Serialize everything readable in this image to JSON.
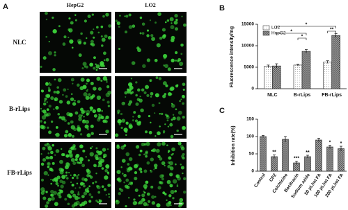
{
  "panel_a": {
    "label": "A",
    "columns": [
      "HepG2",
      "LO2"
    ],
    "rows": [
      "NLC",
      "B-rLips",
      "FB-rLips"
    ]
  },
  "chart_data": [
    {
      "type": "bar",
      "panel_label": "B",
      "y_label": "Fluorescence intensity/mg",
      "categories": [
        "NLC",
        "B-rLips",
        "FB-rLips"
      ],
      "series": [
        {
          "name": "LO2",
          "color": "#ffffff",
          "hatch": "dots",
          "values": [
            5200,
            5500,
            6200
          ],
          "errors": [
            300,
            250,
            300
          ]
        },
        {
          "name": "HepG2",
          "color": "#9a9a9a",
          "hatch": "cross",
          "values": [
            5300,
            8700,
            12400
          ],
          "errors": [
            500,
            400,
            400
          ]
        }
      ],
      "ylim": [
        0,
        15000
      ],
      "yticks": [
        0,
        5000,
        10000,
        15000
      ],
      "legend": "upper-left",
      "annotations": [
        "*",
        "*",
        "*",
        "**"
      ]
    },
    {
      "type": "bar",
      "panel_label": "C",
      "y_label": "Inhibition rate(%)",
      "categories": [
        "Control",
        "CPZ",
        "Colchicine",
        "Bacitracin",
        "Sodium azide",
        "50 μL/ml FA",
        "100 μL/ml FA",
        "200 μL/ml FA"
      ],
      "series": [
        {
          "name": null,
          "color": "#9a9a9a",
          "hatch": "cross",
          "values": [
            100,
            42,
            92,
            24,
            42,
            90,
            70,
            65
          ],
          "errors": [
            3,
            5,
            8,
            5,
            4,
            5,
            5,
            7
          ],
          "value_labels": [
            null,
            "**",
            null,
            "***",
            "**",
            null,
            "*",
            "*"
          ]
        }
      ],
      "ylim": [
        0,
        150
      ],
      "yticks": [
        0,
        50,
        100,
        150
      ]
    }
  ]
}
